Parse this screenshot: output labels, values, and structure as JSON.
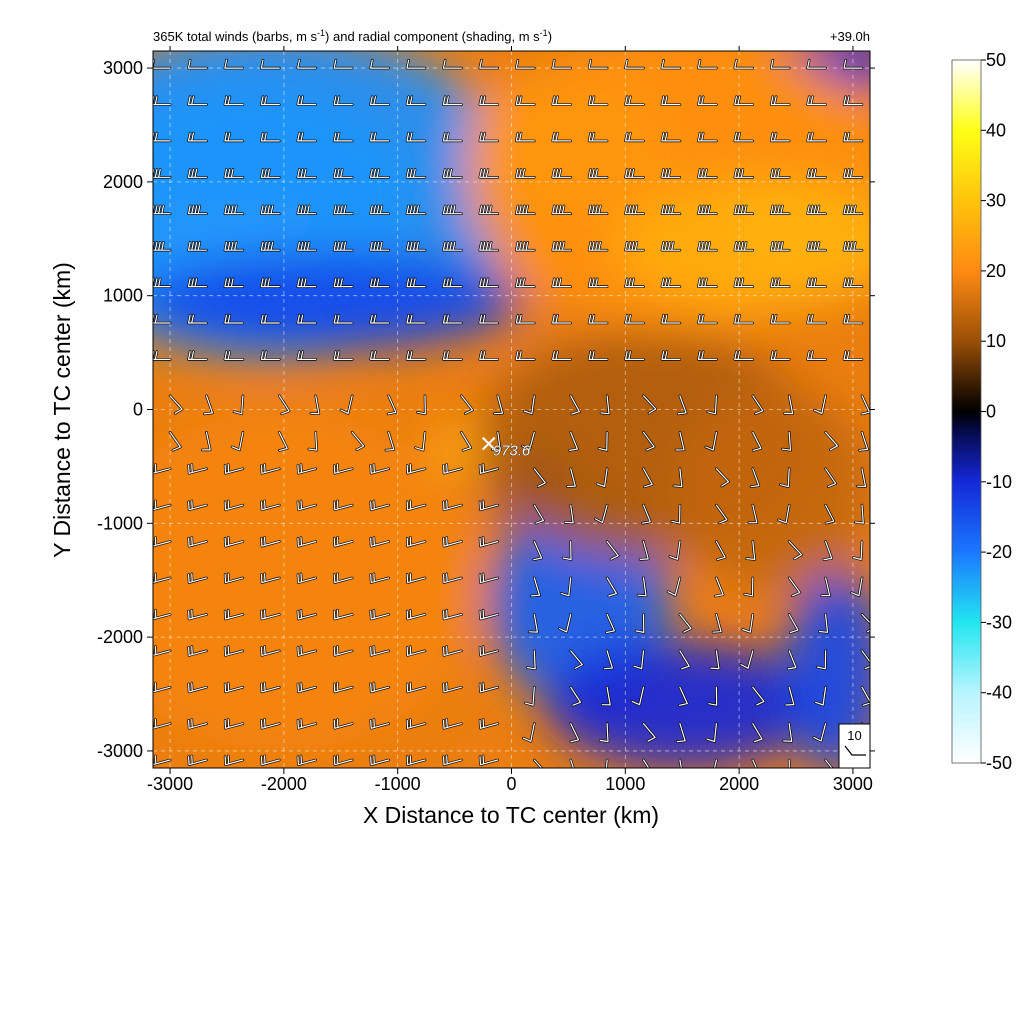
{
  "chart_data": {
    "type": "heatmap",
    "title_left": "365K total winds (barbs, m s-1) and radial component (shading, m s-1)",
    "title_left_parts": {
      "p1": "365K total winds (barbs, m s",
      "sup1": "-1",
      "p2": ") and radial component (shading, m s",
      "sup2": "-1",
      "p3": ")"
    },
    "title_right": "+39.0h",
    "xlabel": "X Distance to TC center (km)",
    "ylabel": "Y Distance to TC center (km)",
    "xlim": [
      -3150,
      3150
    ],
    "ylim": [
      -3150,
      3150
    ],
    "x_ticks": [
      -3000,
      -2000,
      -1000,
      0,
      1000,
      2000,
      3000
    ],
    "y_ticks": [
      -3000,
      -2000,
      -1000,
      0,
      1000,
      2000,
      3000
    ],
    "grid": true,
    "colorbar": {
      "min": -50,
      "max": 50,
      "ticks": [
        50,
        40,
        30,
        20,
        10,
        0,
        -10,
        -20,
        -30,
        -40,
        -50
      ],
      "colors": [
        {
          "v": -50,
          "c": "#ffffff"
        },
        {
          "v": -40,
          "c": "#b8f4ff"
        },
        {
          "v": -30,
          "c": "#22e6f0"
        },
        {
          "v": -20,
          "c": "#1a78ff"
        },
        {
          "v": -10,
          "c": "#1428d8"
        },
        {
          "v": -3,
          "c": "#060a50"
        },
        {
          "v": 0,
          "c": "#000000"
        },
        {
          "v": 3,
          "c": "#2c1602"
        },
        {
          "v": 10,
          "c": "#9a4f06"
        },
        {
          "v": 20,
          "c": "#ff8a12"
        },
        {
          "v": 30,
          "c": "#ffc40c"
        },
        {
          "v": 40,
          "c": "#ffff16"
        },
        {
          "v": 50,
          "c": "#ffffff"
        }
      ]
    },
    "shading_regions": [
      {
        "x": -2550,
        "y": 1580,
        "rx": 950,
        "ry": 280,
        "value": -47
      },
      {
        "x": -2300,
        "y": 1850,
        "rx": 1500,
        "ry": 1050,
        "value": -32
      },
      {
        "x": -2100,
        "y": 1900,
        "rx": 2200,
        "ry": 1450,
        "value": -22
      },
      {
        "x": -1600,
        "y": 950,
        "rx": 1700,
        "ry": 420,
        "value": -14
      },
      {
        "x": 600,
        "y": -1700,
        "rx": 800,
        "ry": 900,
        "value": -17
      },
      {
        "x": 1500,
        "y": -2600,
        "rx": 1200,
        "ry": 550,
        "value": -10
      },
      {
        "x": 2850,
        "y": -2300,
        "rx": 450,
        "ry": 900,
        "value": -14
      },
      {
        "x": 2900,
        "y": 3050,
        "rx": 550,
        "ry": 250,
        "value": -10
      },
      {
        "x": 200,
        "y": -700,
        "rx": 350,
        "ry": 350,
        "value": -8
      },
      {
        "x": 1500,
        "y": 2000,
        "rx": 1900,
        "ry": 1300,
        "value": 21
      },
      {
        "x": 2550,
        "y": 1570,
        "rx": 700,
        "ry": 380,
        "value": 34
      },
      {
        "x": 2200,
        "y": 1450,
        "rx": 1300,
        "ry": 600,
        "value": 26
      },
      {
        "x": 500,
        "y": 2300,
        "rx": 900,
        "ry": 700,
        "value": 22
      },
      {
        "x": -2000,
        "y": -1500,
        "rx": 1700,
        "ry": 1500,
        "value": 19
      },
      {
        "x": -450,
        "y": -350,
        "rx": 260,
        "ry": 260,
        "value": 25
      },
      {
        "x": 1200,
        "y": -300,
        "rx": 1500,
        "ry": 1000,
        "value": 12
      },
      {
        "x": 2300,
        "y": -700,
        "rx": 900,
        "ry": 900,
        "value": 14
      }
    ],
    "barbs": {
      "x_start": -3000,
      "x_step": 320,
      "y_start": 3000,
      "y_step": -320,
      "cols": 20,
      "rows": 20
    },
    "tc_center": {
      "x": -200,
      "y": -300,
      "label": "973.6"
    },
    "reference_barb": {
      "label": "10"
    }
  }
}
